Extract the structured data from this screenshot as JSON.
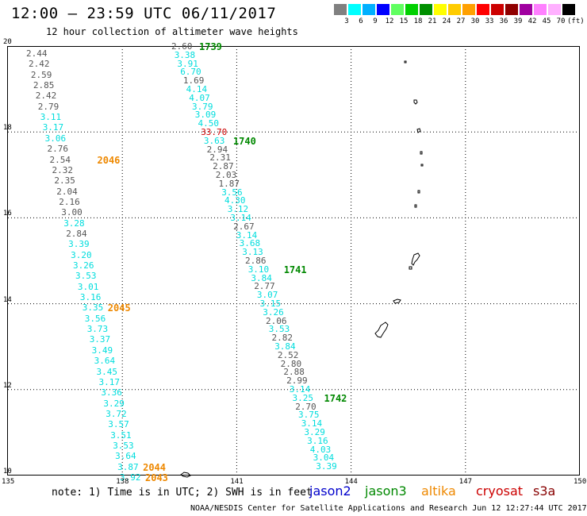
{
  "header": {
    "title": "12:00 – 23:59 UTC 06/11/2017",
    "subtitle": "12 hour collection of altimeter wave heights"
  },
  "color_scale": {
    "labels": [
      "3",
      "6",
      "9",
      "12",
      "15",
      "18",
      "21",
      "24",
      "27",
      "30",
      "33",
      "36",
      "39",
      "42",
      "45",
      "70",
      "(ft)"
    ],
    "colors": [
      "#808080",
      "#00ffff",
      "#00b0ff",
      "#0000ff",
      "#60ff60",
      "#00d000",
      "#009000",
      "#ffff00",
      "#ffcc00",
      "#ffa000",
      "#ff0000",
      "#cc0000",
      "#900000",
      "#a000a0",
      "#ff80ff",
      "#ffb0ff",
      "#000000"
    ]
  },
  "map": {
    "lat_labels": [
      "20",
      "18",
      "16",
      "14",
      "12",
      "10"
    ],
    "lon_labels": [
      "135",
      "138",
      "141",
      "144",
      "147",
      "150"
    ],
    "lat_values": [
      20,
      18,
      16,
      14,
      12,
      10
    ],
    "lon_values": [
      135,
      138,
      141,
      144,
      147,
      150
    ]
  },
  "tracks": [
    {
      "satellite": "jason3",
      "times": [
        "2046",
        "2045",
        "2044",
        "2043"
      ],
      "measurements": [
        {
          "v": "2.44",
          "c": "gray"
        },
        {
          "v": "2.42",
          "c": "gray"
        },
        {
          "v": "2.59",
          "c": "gray"
        },
        {
          "v": "2.85",
          "c": "gray"
        },
        {
          "v": "2.42",
          "c": "gray"
        },
        {
          "v": "2.79",
          "c": "gray"
        },
        {
          "v": "3.11",
          "c": "jason2"
        },
        {
          "v": "3.17",
          "c": "jason2"
        },
        {
          "v": "3.06",
          "c": "jason2"
        },
        {
          "v": "2.76",
          "c": "gray"
        },
        {
          "v": "2.54",
          "c": "gray"
        },
        {
          "v": "2.32",
          "c": "gray"
        },
        {
          "v": "2.35",
          "c": "gray"
        },
        {
          "v": "2.04",
          "c": "gray"
        },
        {
          "v": "2.16",
          "c": "gray"
        },
        {
          "v": "3.00",
          "c": "gray"
        },
        {
          "v": "3.28",
          "c": "jason2"
        },
        {
          "v": "2.84",
          "c": "gray"
        },
        {
          "v": "3.39",
          "c": "jason2"
        },
        {
          "v": "3.20",
          "c": "jason2"
        },
        {
          "v": "3.26",
          "c": "jason2"
        },
        {
          "v": "3.53",
          "c": "jason2"
        },
        {
          "v": "3.01",
          "c": "jason2"
        },
        {
          "v": "3.16",
          "c": "jason2"
        },
        {
          "v": "3.35",
          "c": "jason2"
        },
        {
          "v": "3.56",
          "c": "jason2"
        },
        {
          "v": "3.73",
          "c": "jason2"
        },
        {
          "v": "3.37",
          "c": "jason2"
        },
        {
          "v": "3.49",
          "c": "jason2"
        },
        {
          "v": "3.64",
          "c": "jason2"
        },
        {
          "v": "3.45",
          "c": "jason2"
        },
        {
          "v": "3.17",
          "c": "jason2"
        },
        {
          "v": "3.36",
          "c": "jason2"
        },
        {
          "v": "3.29",
          "c": "jason2"
        },
        {
          "v": "3.72",
          "c": "jason2"
        },
        {
          "v": "3.57",
          "c": "jason2"
        },
        {
          "v": "3.51",
          "c": "jason2"
        },
        {
          "v": "3.53",
          "c": "jason2"
        },
        {
          "v": "3.64",
          "c": "jason2"
        },
        {
          "v": "3.87",
          "c": "jason2"
        },
        {
          "v": "3.92",
          "c": "jason2"
        }
      ]
    },
    {
      "satellite": "jason3",
      "times": [
        "1739",
        "1740",
        "1741",
        "1742"
      ],
      "measurements": [
        {
          "v": "2.60",
          "c": "gray"
        },
        {
          "v": "3.38",
          "c": "jason2"
        },
        {
          "v": "3.91",
          "c": "jason2"
        },
        {
          "v": "6.70",
          "c": "jason2"
        },
        {
          "v": "1.69",
          "c": "gray"
        },
        {
          "v": "4.14",
          "c": "jason2"
        },
        {
          "v": "4.07",
          "c": "jason2"
        },
        {
          "v": "3.79",
          "c": "jason2"
        },
        {
          "v": "3.09",
          "c": "jason2"
        },
        {
          "v": "4.50",
          "c": "jason2"
        },
        {
          "v": "33.70",
          "c": "cryosat"
        },
        {
          "v": "3.63",
          "c": "jason2"
        },
        {
          "v": "2.94",
          "c": "gray"
        },
        {
          "v": "2.31",
          "c": "gray"
        },
        {
          "v": "2.87",
          "c": "gray"
        },
        {
          "v": "2.03",
          "c": "gray"
        },
        {
          "v": "1.87",
          "c": "gray"
        },
        {
          "v": "3.56",
          "c": "jason2"
        },
        {
          "v": "4.30",
          "c": "jason2"
        },
        {
          "v": "3.12",
          "c": "jason2"
        },
        {
          "v": "3.14",
          "c": "jason2"
        },
        {
          "v": "2.67",
          "c": "gray"
        },
        {
          "v": "3.14",
          "c": "jason2"
        },
        {
          "v": "3.68",
          "c": "jason2"
        },
        {
          "v": "3.13",
          "c": "jason2"
        },
        {
          "v": "2.86",
          "c": "gray"
        },
        {
          "v": "3.10",
          "c": "jason2"
        },
        {
          "v": "3.84",
          "c": "jason2"
        },
        {
          "v": "2.77",
          "c": "gray"
        },
        {
          "v": "3.07",
          "c": "jason2"
        },
        {
          "v": "3.15",
          "c": "jason2"
        },
        {
          "v": "3.26",
          "c": "jason2"
        },
        {
          "v": "2.06",
          "c": "gray"
        },
        {
          "v": "3.53",
          "c": "jason2"
        },
        {
          "v": "2.82",
          "c": "gray"
        },
        {
          "v": "3.84",
          "c": "jason2"
        },
        {
          "v": "2.52",
          "c": "gray"
        },
        {
          "v": "2.80",
          "c": "gray"
        },
        {
          "v": "2.88",
          "c": "gray"
        },
        {
          "v": "2.99",
          "c": "gray"
        },
        {
          "v": "3.14",
          "c": "jason2"
        },
        {
          "v": "3.25",
          "c": "jason2"
        },
        {
          "v": "2.70",
          "c": "gray"
        },
        {
          "v": "3.75",
          "c": "jason2"
        },
        {
          "v": "3.14",
          "c": "jason2"
        },
        {
          "v": "3.29",
          "c": "jason2"
        },
        {
          "v": "3.16",
          "c": "jason2"
        },
        {
          "v": "4.03",
          "c": "jason2"
        },
        {
          "v": "3.04",
          "c": "jason2"
        },
        {
          "v": "3.39",
          "c": "jason2"
        }
      ]
    }
  ],
  "footer": {
    "note": "note: 1) Time is in UTC; 2) SWH is in feet",
    "satellites": [
      {
        "name": "jason2",
        "color": "#0000cc"
      },
      {
        "name": "jason3",
        "color": "#008800"
      },
      {
        "name": "altika",
        "color": "#ee8800"
      },
      {
        "name": "cryosat",
        "color": "#cc0000"
      },
      {
        "name": "s3a",
        "color": "#880000"
      }
    ],
    "credit": "NOAA/NESDIS Center for Satellite Applications and Research   Jun 12 12:27:44 UTC 2017"
  }
}
